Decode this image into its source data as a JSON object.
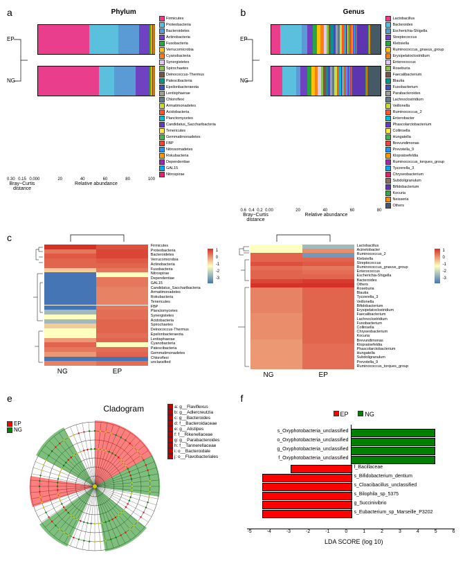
{
  "groups": {
    "ep": "EP",
    "ng": "NG"
  },
  "panel_labels": {
    "a": "a",
    "b": "b",
    "c": "c",
    "e": "e",
    "f": "f"
  },
  "titles": {
    "phylum": "Phylum",
    "genus": "Genus",
    "clado": "Cladogram",
    "lda": "LDA SCORE (log 10)"
  },
  "axis": {
    "bc": "Bray−Curtis distance",
    "rel": "Relative abundance"
  },
  "phylum": {
    "xlim": [
      0,
      100
    ],
    "bc_ticks": [
      "0.30",
      "0.15",
      "0.00"
    ],
    "rel_ticks": [
      "0",
      "20",
      "40",
      "60",
      "80",
      "100"
    ],
    "taxa": [
      {
        "name": "Firmicutes",
        "color": "#e83e8c",
        "ep": 44,
        "ng": 52
      },
      {
        "name": "Proteobacteria",
        "color": "#5bc0de",
        "ep": 25,
        "ng": 13
      },
      {
        "name": "Bacteroidetes",
        "color": "#5b9bd5",
        "ep": 18,
        "ng": 18
      },
      {
        "name": "Actinobacteria",
        "color": "#6f42c1",
        "ep": 9,
        "ng": 12
      },
      {
        "name": "Fusobacteria",
        "color": "#28a745",
        "ep": 1,
        "ng": 1
      },
      {
        "name": "Verrucomicrobia",
        "color": "#ffc107",
        "ep": 1,
        "ng": 1
      },
      {
        "name": "Cyanobacteria",
        "color": "#fd7e14",
        "ep": 0.2,
        "ng": 0.2
      },
      {
        "name": "Synergistetes",
        "color": "#e0c8f0",
        "ep": 0.2,
        "ng": 0.2
      },
      {
        "name": "Spirochaetes",
        "color": "#8bc34a",
        "ep": 0.2,
        "ng": 0.2
      },
      {
        "name": "Deinococcus-Thermus",
        "color": "#795548",
        "ep": 0.2,
        "ng": 0.2
      },
      {
        "name": "Patescibacteria",
        "color": "#009688",
        "ep": 0.2,
        "ng": 0.2
      },
      {
        "name": "Epsilonbacteraeota",
        "color": "#3f51b5",
        "ep": 0.2,
        "ng": 0.2
      },
      {
        "name": "Lentisphaerae",
        "color": "#9e9e9e",
        "ep": 0.1,
        "ng": 0.1
      },
      {
        "name": "Chloroflexi",
        "color": "#607d8b",
        "ep": 0.1,
        "ng": 0.1
      },
      {
        "name": "Armatimonadetes",
        "color": "#cddc39",
        "ep": 0.1,
        "ng": 0.1
      },
      {
        "name": "Acidobacteria",
        "color": "#ff5722",
        "ep": 0.1,
        "ng": 0.1
      },
      {
        "name": "Planctomycetes",
        "color": "#00bcd4",
        "ep": 0.1,
        "ng": 0.1
      },
      {
        "name": "Candidatus_Saccharibacteria",
        "color": "#673ab7",
        "ep": 0.05,
        "ng": 0.05
      },
      {
        "name": "Tenericutes",
        "color": "#ffeb3b",
        "ep": 0.05,
        "ng": 0.05
      },
      {
        "name": "Gemmatimonadetes",
        "color": "#4caf50",
        "ep": 0.05,
        "ng": 0.05
      },
      {
        "name": "FBP",
        "color": "#f44336",
        "ep": 0.05,
        "ng": 0.05
      },
      {
        "name": "Nitrosomadetes",
        "color": "#2196f3",
        "ep": 0.05,
        "ng": 0.05
      },
      {
        "name": "Rokubacteria",
        "color": "#ff9800",
        "ep": 0.05,
        "ng": 0.05
      },
      {
        "name": "Dependentiae",
        "color": "#9c27b0",
        "ep": 0.05,
        "ng": 0.05
      },
      {
        "name": "GAL15",
        "color": "#03a9f4",
        "ep": 0.05,
        "ng": 0.05
      },
      {
        "name": "Nitrospirae",
        "color": "#e91e63",
        "ep": 0.05,
        "ng": 0.05
      }
    ]
  },
  "genus": {
    "bc_ticks": [
      "0.6",
      "0.4",
      "0.2",
      "0.0"
    ],
    "rel_ticks": [
      "0",
      "20",
      "40",
      "60",
      "80"
    ],
    "taxa": [
      {
        "name": "Lactobacillus",
        "color": "#e83e8c",
        "ep": 8,
        "ng": 10
      },
      {
        "name": "Bacteroides",
        "color": "#5bc0de",
        "ep": 20,
        "ng": 12
      },
      {
        "name": "Escherichia-Shigella",
        "color": "#5b9bd5",
        "ep": 5,
        "ng": 4
      },
      {
        "name": "Streptococcus",
        "color": "#6f42c1",
        "ep": 5,
        "ng": 6
      },
      {
        "name": "Klebsiella",
        "color": "#28a745",
        "ep": 4,
        "ng": 4
      },
      {
        "name": "Ruminococcus_gnavus_group",
        "color": "#ffc107",
        "ep": 3,
        "ng": 3
      },
      {
        "name": "Erysipelatoclostridium",
        "color": "#fd7e14",
        "ep": 3,
        "ng": 3
      },
      {
        "name": "Enterococcus",
        "color": "#e0c8f0",
        "ep": 3,
        "ng": 3
      },
      {
        "name": "Roseburia",
        "color": "#8bc34a",
        "ep": 2,
        "ng": 2
      },
      {
        "name": "Faecalibacterium",
        "color": "#795548",
        "ep": 2,
        "ng": 2
      },
      {
        "name": "Blautia",
        "color": "#009688",
        "ep": 2,
        "ng": 2
      },
      {
        "name": "Fusobacterium",
        "color": "#3f51b5",
        "ep": 2,
        "ng": 2
      },
      {
        "name": "Parabacteroides",
        "color": "#9e9e9e",
        "ep": 2,
        "ng": 2
      },
      {
        "name": "Lachnoclostridium",
        "color": "#607d8b",
        "ep": 2,
        "ng": 2
      },
      {
        "name": "Veillonella",
        "color": "#cddc39",
        "ep": 2,
        "ng": 2
      },
      {
        "name": "Ruminococcus_2",
        "color": "#ff5722",
        "ep": 2,
        "ng": 2
      },
      {
        "name": "Enterobacter",
        "color": "#00bcd4",
        "ep": 2,
        "ng": 2
      },
      {
        "name": "Phascolarctobacterium",
        "color": "#673ab7",
        "ep": 1,
        "ng": 1
      },
      {
        "name": "Collinsella",
        "color": "#ffeb3b",
        "ep": 1,
        "ng": 1
      },
      {
        "name": "Hungatella",
        "color": "#4caf50",
        "ep": 1,
        "ng": 1
      },
      {
        "name": "Brevundimonas",
        "color": "#f44336",
        "ep": 1,
        "ng": 1
      },
      {
        "name": "Prevotella_9",
        "color": "#2196f3",
        "ep": 1,
        "ng": 1
      },
      {
        "name": "Klopratoefeldia",
        "color": "#ff9800",
        "ep": 1,
        "ng": 1
      },
      {
        "name": "Ruminococcus_torques_group",
        "color": "#9c27b0",
        "ep": 1,
        "ng": 1
      },
      {
        "name": "Tyzzerella_3",
        "color": "#03a9f4",
        "ep": 1,
        "ng": 1
      },
      {
        "name": "Chryseobacterium",
        "color": "#e91e63",
        "ep": 1,
        "ng": 1
      },
      {
        "name": "Subdoligranulum",
        "color": "#8d6e63",
        "ep": 1,
        "ng": 1
      },
      {
        "name": "Bifidobacterium",
        "color": "#5e35b1",
        "ep": 10,
        "ng": 12
      },
      {
        "name": "Kocuria",
        "color": "#43a047",
        "ep": 1,
        "ng": 1
      },
      {
        "name": "Neisseria",
        "color": "#fb8c00",
        "ep": 1,
        "ng": 1
      },
      {
        "name": "Others",
        "color": "#455a64",
        "ep": 10,
        "ng": 12
      }
    ]
  },
  "heatmap": {
    "colorscale": {
      "min_color": "#4575b4",
      "mid_color": "#ffffbf",
      "max_color": "#d73027"
    },
    "scale_labels": [
      "1",
      "0",
      "-1",
      "-2",
      "-3"
    ],
    "phylum_rows": [
      {
        "name": "Firmicutes",
        "ng": 1.0,
        "ep": 0.7
      },
      {
        "name": "Proteobacteria",
        "ng": 0.3,
        "ep": 0.8
      },
      {
        "name": "Bacteroidetes",
        "ng": 0.6,
        "ep": 0.8
      },
      {
        "name": "Verrucomicrobia",
        "ng": 0.5,
        "ep": 0.6
      },
      {
        "name": "Actinobacteria",
        "ng": 0.5,
        "ep": 0.5
      },
      {
        "name": "Fusobacteria",
        "ng": -0.5,
        "ep": 0.3
      },
      {
        "name": "Nitrospirae",
        "ng": -3,
        "ep": -1
      },
      {
        "name": "Dependentiae",
        "ng": -3,
        "ep": 0.3
      },
      {
        "name": "GAL15",
        "ng": -3,
        "ep": 0.3
      },
      {
        "name": "Candidatus_Saccharibacteria",
        "ng": -3,
        "ep": 0.2
      },
      {
        "name": "Armatimonadetes",
        "ng": -3,
        "ep": 0.2
      },
      {
        "name": "Rokubacteria",
        "ng": -3,
        "ep": 0.2
      },
      {
        "name": "Tenericutes",
        "ng": -3,
        "ep": 0.2
      },
      {
        "name": "FBP",
        "ng": -3,
        "ep": 0.3
      },
      {
        "name": "Planctomycetes",
        "ng": -2,
        "ep": 0.4
      },
      {
        "name": "Synergistetes",
        "ng": -1,
        "ep": 0.4
      },
      {
        "name": "Acidobacteria",
        "ng": -2,
        "ep": 0.5
      },
      {
        "name": "Spirochaetes",
        "ng": -0.5,
        "ep": 0.5
      },
      {
        "name": "Deinococcus-Thermus",
        "ng": -1,
        "ep": 0.5
      },
      {
        "name": "Epsilonbacteraeota",
        "ng": -1,
        "ep": 0.4
      },
      {
        "name": "Lentisphaerae",
        "ng": 0.0,
        "ep": 0.5
      },
      {
        "name": "Cyanobacteria",
        "ng": 0.5,
        "ep": -1
      },
      {
        "name": "Patescibacteria",
        "ng": 0.3,
        "ep": 0.4
      },
      {
        "name": "Gemmatimonadetes",
        "ng": 0.0,
        "ep": 0.5
      },
      {
        "name": "Chloroflexi",
        "ng": -3,
        "ep": -3
      },
      {
        "name": "unclassified",
        "ng": 0.2,
        "ep": 0.4
      }
    ],
    "genus_rows": [
      {
        "name": "Lactobacillus",
        "ng": -1,
        "ep": -2
      },
      {
        "name": "Acinetobacter",
        "ng": -1,
        "ep": 0.1
      },
      {
        "name": "Ruminococcus_2",
        "ng": 0.5,
        "ep": -2.5
      },
      {
        "name": "Klebsiella",
        "ng": 0.5,
        "ep": 0.5
      },
      {
        "name": "Streptococcus",
        "ng": 0.7,
        "ep": 0.6
      },
      {
        "name": "Ruminococcus_gnavus_group",
        "ng": 0.4,
        "ep": 0.3
      },
      {
        "name": "Enterococcus",
        "ng": 0.5,
        "ep": 0.4
      },
      {
        "name": "Escherichia-Shigella",
        "ng": 0.5,
        "ep": 0.5
      },
      {
        "name": "Bacteroides",
        "ng": 0.8,
        "ep": 0.9
      },
      {
        "name": "Others",
        "ng": 1.0,
        "ep": 1.0
      },
      {
        "name": "Roseburia",
        "ng": 0.2,
        "ep": 0.5
      },
      {
        "name": "Blautia",
        "ng": 0.2,
        "ep": 0.5
      },
      {
        "name": "Tyzzerella_3",
        "ng": 0.2,
        "ep": 0.5
      },
      {
        "name": "Veillonella",
        "ng": 0.2,
        "ep": 0.5
      },
      {
        "name": "Bifidobacterium",
        "ng": 0.2,
        "ep": 0.5
      },
      {
        "name": "Erysipelatoclostridium",
        "ng": 0.2,
        "ep": 0.5
      },
      {
        "name": "Faecalibacterium",
        "ng": 0.1,
        "ep": 0.5
      },
      {
        "name": "Lachnoclostridium",
        "ng": 0.1,
        "ep": 0.5
      },
      {
        "name": "Fusobacterium",
        "ng": 0.1,
        "ep": 0.5
      },
      {
        "name": "Collinsella",
        "ng": 0.1,
        "ep": 0.5
      },
      {
        "name": "Chryseobacterium",
        "ng": 0.1,
        "ep": 0.5
      },
      {
        "name": "Kocuria",
        "ng": 0.1,
        "ep": 0.5
      },
      {
        "name": "Brevundimonas",
        "ng": 0.0,
        "ep": 0.5
      },
      {
        "name": "Klopratoefeldia",
        "ng": 0.0,
        "ep": 0.4
      },
      {
        "name": "Phascolarctobacterium",
        "ng": 0.0,
        "ep": 0.4
      },
      {
        "name": "Hungatella",
        "ng": 0.0,
        "ep": 0.4
      },
      {
        "name": "Subdoligranulum",
        "ng": 0.0,
        "ep": 0.4
      },
      {
        "name": "Prevotella_9",
        "ng": 0.0,
        "ep": 0.4
      },
      {
        "name": "Ruminococcus_torques_group",
        "ng": 0.0,
        "ep": 0.4
      }
    ]
  },
  "clado": {
    "colors": {
      "ep": "#ff0000",
      "ng": "#008000"
    },
    "keys": [
      "a: g__Flaviflexus",
      "b: g__Adlercreutzia",
      "c: g__Bacteroides",
      "d: f__Bacteroidaceae",
      "e: g__Alistipes",
      "f: f__Rikenellaceae",
      "g: g__Parabacteroides",
      "h: f__Tannerellaceae",
      "i: o__Bacteroidale",
      "j: o__Flavobacteriales"
    ]
  },
  "lda": {
    "colors": {
      "ep": "#ff0000",
      "ng": "#008000"
    },
    "ticks": [
      "-5",
      "-4",
      "-3",
      "-2",
      "-1",
      "0",
      "1",
      "2",
      "3",
      "4",
      "5",
      "6"
    ],
    "bars": [
      {
        "label": "s_Oxyphotobacteria_unclassified",
        "value": 4.4,
        "group": "ng"
      },
      {
        "label": "o_Oxyphotobacteria_unclassified",
        "value": 4.4,
        "group": "ng"
      },
      {
        "label": "g_Oxyphotobacteria_unclassified",
        "value": 4.4,
        "group": "ng"
      },
      {
        "label": "f_Oxyphotobacteria_unclassified",
        "value": 4.4,
        "group": "ng"
      },
      {
        "label": "f_Bacillaceae",
        "value": -3.2,
        "group": "ep"
      },
      {
        "label": "s_Bifidobacterium_dentium",
        "value": -4.7,
        "group": "ep"
      },
      {
        "label": "s_Cloacibacillus_unclassified",
        "value": -4.7,
        "group": "ep"
      },
      {
        "label": "s_Bilophila_sp_5375",
        "value": -4.7,
        "group": "ep"
      },
      {
        "label": "g_Succinivibrio",
        "value": -4.7,
        "group": "ep"
      },
      {
        "label": "s_Eubacterium_sp_Marseille_P3202",
        "value": -4.7,
        "group": "ep"
      }
    ]
  }
}
